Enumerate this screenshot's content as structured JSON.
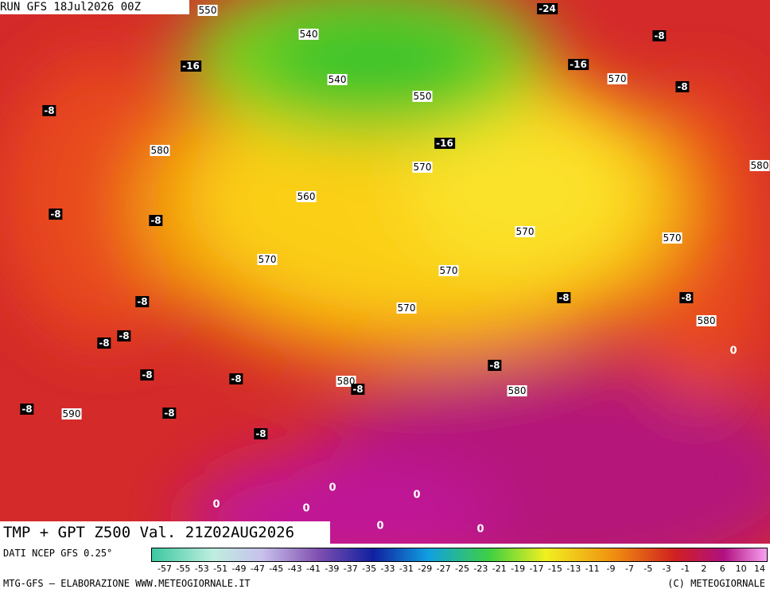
{
  "header": {
    "run": "RUN GFS 18Jul2026 00Z",
    "product": "TMP + GPT Z500 Val. 21Z02AUG2026"
  },
  "map": {
    "contour_labels": [
      550,
      540,
      540,
      550,
      570,
      580,
      570,
      560,
      580,
      570,
      570,
      570,
      570,
      570,
      580,
      580,
      580,
      590
    ],
    "temp_labels": [
      -24,
      -8,
      -16,
      -16,
      -8,
      -8,
      -16,
      -8,
      -8,
      -8,
      -8,
      -8,
      -8,
      -8,
      -8,
      -8,
      -8,
      -8,
      -8,
      -8,
      -8
    ],
    "zero_labels": [
      0,
      0,
      0,
      0,
      0,
      0,
      0
    ]
  },
  "colorbar": {
    "source": "DATI NCEP GFS 0.25°",
    "ticks": [
      -57,
      -55,
      -53,
      -51,
      -49,
      -47,
      -45,
      -43,
      -41,
      -39,
      -37,
      -35,
      -33,
      -31,
      -29,
      -27,
      -25,
      -23,
      -21,
      -19,
      -17,
      -15,
      -13,
      -11,
      -9,
      -7,
      -5,
      -3,
      -1,
      2,
      6,
      10,
      14
    ]
  },
  "footer": {
    "credit": "MTG-GFS — ELABORAZIONE WWW.METEOGIORNALE.IT",
    "copyright": "(C) METEOGIORNALE"
  }
}
